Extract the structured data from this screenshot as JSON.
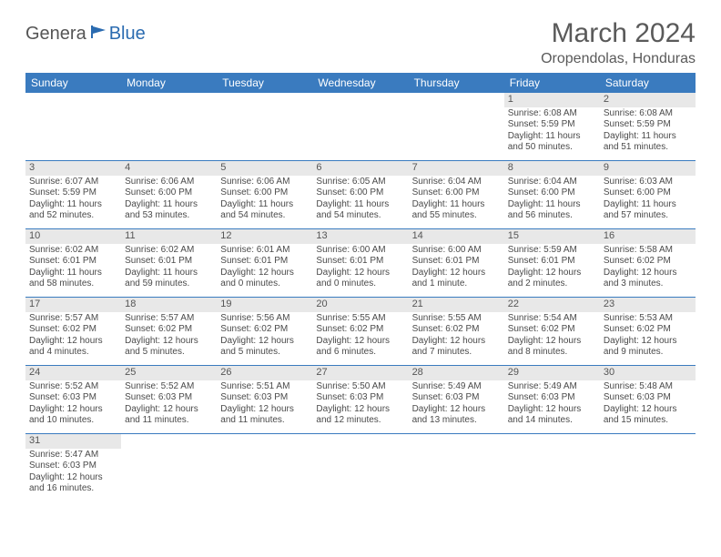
{
  "logo": {
    "general": "Genera",
    "blue": "Blue"
  },
  "header": {
    "month": "March 2024",
    "location": "Oropendolas, Honduras"
  },
  "calendar": {
    "day_headers": [
      "Sunday",
      "Monday",
      "Tuesday",
      "Wednesday",
      "Thursday",
      "Friday",
      "Saturday"
    ],
    "header_bg": "#3a7bbf",
    "header_fg": "#ffffff",
    "daynum_bg": "#e8e8e8",
    "border_color": "#3a7bbf",
    "cell_font_size": 10,
    "weeks": [
      [
        null,
        null,
        null,
        null,
        null,
        {
          "n": "1",
          "sunrise": "Sunrise: 6:08 AM",
          "sunset": "Sunset: 5:59 PM",
          "daylight": "Daylight: 11 hours and 50 minutes."
        },
        {
          "n": "2",
          "sunrise": "Sunrise: 6:08 AM",
          "sunset": "Sunset: 5:59 PM",
          "daylight": "Daylight: 11 hours and 51 minutes."
        }
      ],
      [
        {
          "n": "3",
          "sunrise": "Sunrise: 6:07 AM",
          "sunset": "Sunset: 5:59 PM",
          "daylight": "Daylight: 11 hours and 52 minutes."
        },
        {
          "n": "4",
          "sunrise": "Sunrise: 6:06 AM",
          "sunset": "Sunset: 6:00 PM",
          "daylight": "Daylight: 11 hours and 53 minutes."
        },
        {
          "n": "5",
          "sunrise": "Sunrise: 6:06 AM",
          "sunset": "Sunset: 6:00 PM",
          "daylight": "Daylight: 11 hours and 54 minutes."
        },
        {
          "n": "6",
          "sunrise": "Sunrise: 6:05 AM",
          "sunset": "Sunset: 6:00 PM",
          "daylight": "Daylight: 11 hours and 54 minutes."
        },
        {
          "n": "7",
          "sunrise": "Sunrise: 6:04 AM",
          "sunset": "Sunset: 6:00 PM",
          "daylight": "Daylight: 11 hours and 55 minutes."
        },
        {
          "n": "8",
          "sunrise": "Sunrise: 6:04 AM",
          "sunset": "Sunset: 6:00 PM",
          "daylight": "Daylight: 11 hours and 56 minutes."
        },
        {
          "n": "9",
          "sunrise": "Sunrise: 6:03 AM",
          "sunset": "Sunset: 6:00 PM",
          "daylight": "Daylight: 11 hours and 57 minutes."
        }
      ],
      [
        {
          "n": "10",
          "sunrise": "Sunrise: 6:02 AM",
          "sunset": "Sunset: 6:01 PM",
          "daylight": "Daylight: 11 hours and 58 minutes."
        },
        {
          "n": "11",
          "sunrise": "Sunrise: 6:02 AM",
          "sunset": "Sunset: 6:01 PM",
          "daylight": "Daylight: 11 hours and 59 minutes."
        },
        {
          "n": "12",
          "sunrise": "Sunrise: 6:01 AM",
          "sunset": "Sunset: 6:01 PM",
          "daylight": "Daylight: 12 hours and 0 minutes."
        },
        {
          "n": "13",
          "sunrise": "Sunrise: 6:00 AM",
          "sunset": "Sunset: 6:01 PM",
          "daylight": "Daylight: 12 hours and 0 minutes."
        },
        {
          "n": "14",
          "sunrise": "Sunrise: 6:00 AM",
          "sunset": "Sunset: 6:01 PM",
          "daylight": "Daylight: 12 hours and 1 minute."
        },
        {
          "n": "15",
          "sunrise": "Sunrise: 5:59 AM",
          "sunset": "Sunset: 6:01 PM",
          "daylight": "Daylight: 12 hours and 2 minutes."
        },
        {
          "n": "16",
          "sunrise": "Sunrise: 5:58 AM",
          "sunset": "Sunset: 6:02 PM",
          "daylight": "Daylight: 12 hours and 3 minutes."
        }
      ],
      [
        {
          "n": "17",
          "sunrise": "Sunrise: 5:57 AM",
          "sunset": "Sunset: 6:02 PM",
          "daylight": "Daylight: 12 hours and 4 minutes."
        },
        {
          "n": "18",
          "sunrise": "Sunrise: 5:57 AM",
          "sunset": "Sunset: 6:02 PM",
          "daylight": "Daylight: 12 hours and 5 minutes."
        },
        {
          "n": "19",
          "sunrise": "Sunrise: 5:56 AM",
          "sunset": "Sunset: 6:02 PM",
          "daylight": "Daylight: 12 hours and 5 minutes."
        },
        {
          "n": "20",
          "sunrise": "Sunrise: 5:55 AM",
          "sunset": "Sunset: 6:02 PM",
          "daylight": "Daylight: 12 hours and 6 minutes."
        },
        {
          "n": "21",
          "sunrise": "Sunrise: 5:55 AM",
          "sunset": "Sunset: 6:02 PM",
          "daylight": "Daylight: 12 hours and 7 minutes."
        },
        {
          "n": "22",
          "sunrise": "Sunrise: 5:54 AM",
          "sunset": "Sunset: 6:02 PM",
          "daylight": "Daylight: 12 hours and 8 minutes."
        },
        {
          "n": "23",
          "sunrise": "Sunrise: 5:53 AM",
          "sunset": "Sunset: 6:02 PM",
          "daylight": "Daylight: 12 hours and 9 minutes."
        }
      ],
      [
        {
          "n": "24",
          "sunrise": "Sunrise: 5:52 AM",
          "sunset": "Sunset: 6:03 PM",
          "daylight": "Daylight: 12 hours and 10 minutes."
        },
        {
          "n": "25",
          "sunrise": "Sunrise: 5:52 AM",
          "sunset": "Sunset: 6:03 PM",
          "daylight": "Daylight: 12 hours and 11 minutes."
        },
        {
          "n": "26",
          "sunrise": "Sunrise: 5:51 AM",
          "sunset": "Sunset: 6:03 PM",
          "daylight": "Daylight: 12 hours and 11 minutes."
        },
        {
          "n": "27",
          "sunrise": "Sunrise: 5:50 AM",
          "sunset": "Sunset: 6:03 PM",
          "daylight": "Daylight: 12 hours and 12 minutes."
        },
        {
          "n": "28",
          "sunrise": "Sunrise: 5:49 AM",
          "sunset": "Sunset: 6:03 PM",
          "daylight": "Daylight: 12 hours and 13 minutes."
        },
        {
          "n": "29",
          "sunrise": "Sunrise: 5:49 AM",
          "sunset": "Sunset: 6:03 PM",
          "daylight": "Daylight: 12 hours and 14 minutes."
        },
        {
          "n": "30",
          "sunrise": "Sunrise: 5:48 AM",
          "sunset": "Sunset: 6:03 PM",
          "daylight": "Daylight: 12 hours and 15 minutes."
        }
      ],
      [
        {
          "n": "31",
          "sunrise": "Sunrise: 5:47 AM",
          "sunset": "Sunset: 6:03 PM",
          "daylight": "Daylight: 12 hours and 16 minutes."
        },
        null,
        null,
        null,
        null,
        null,
        null
      ]
    ]
  }
}
